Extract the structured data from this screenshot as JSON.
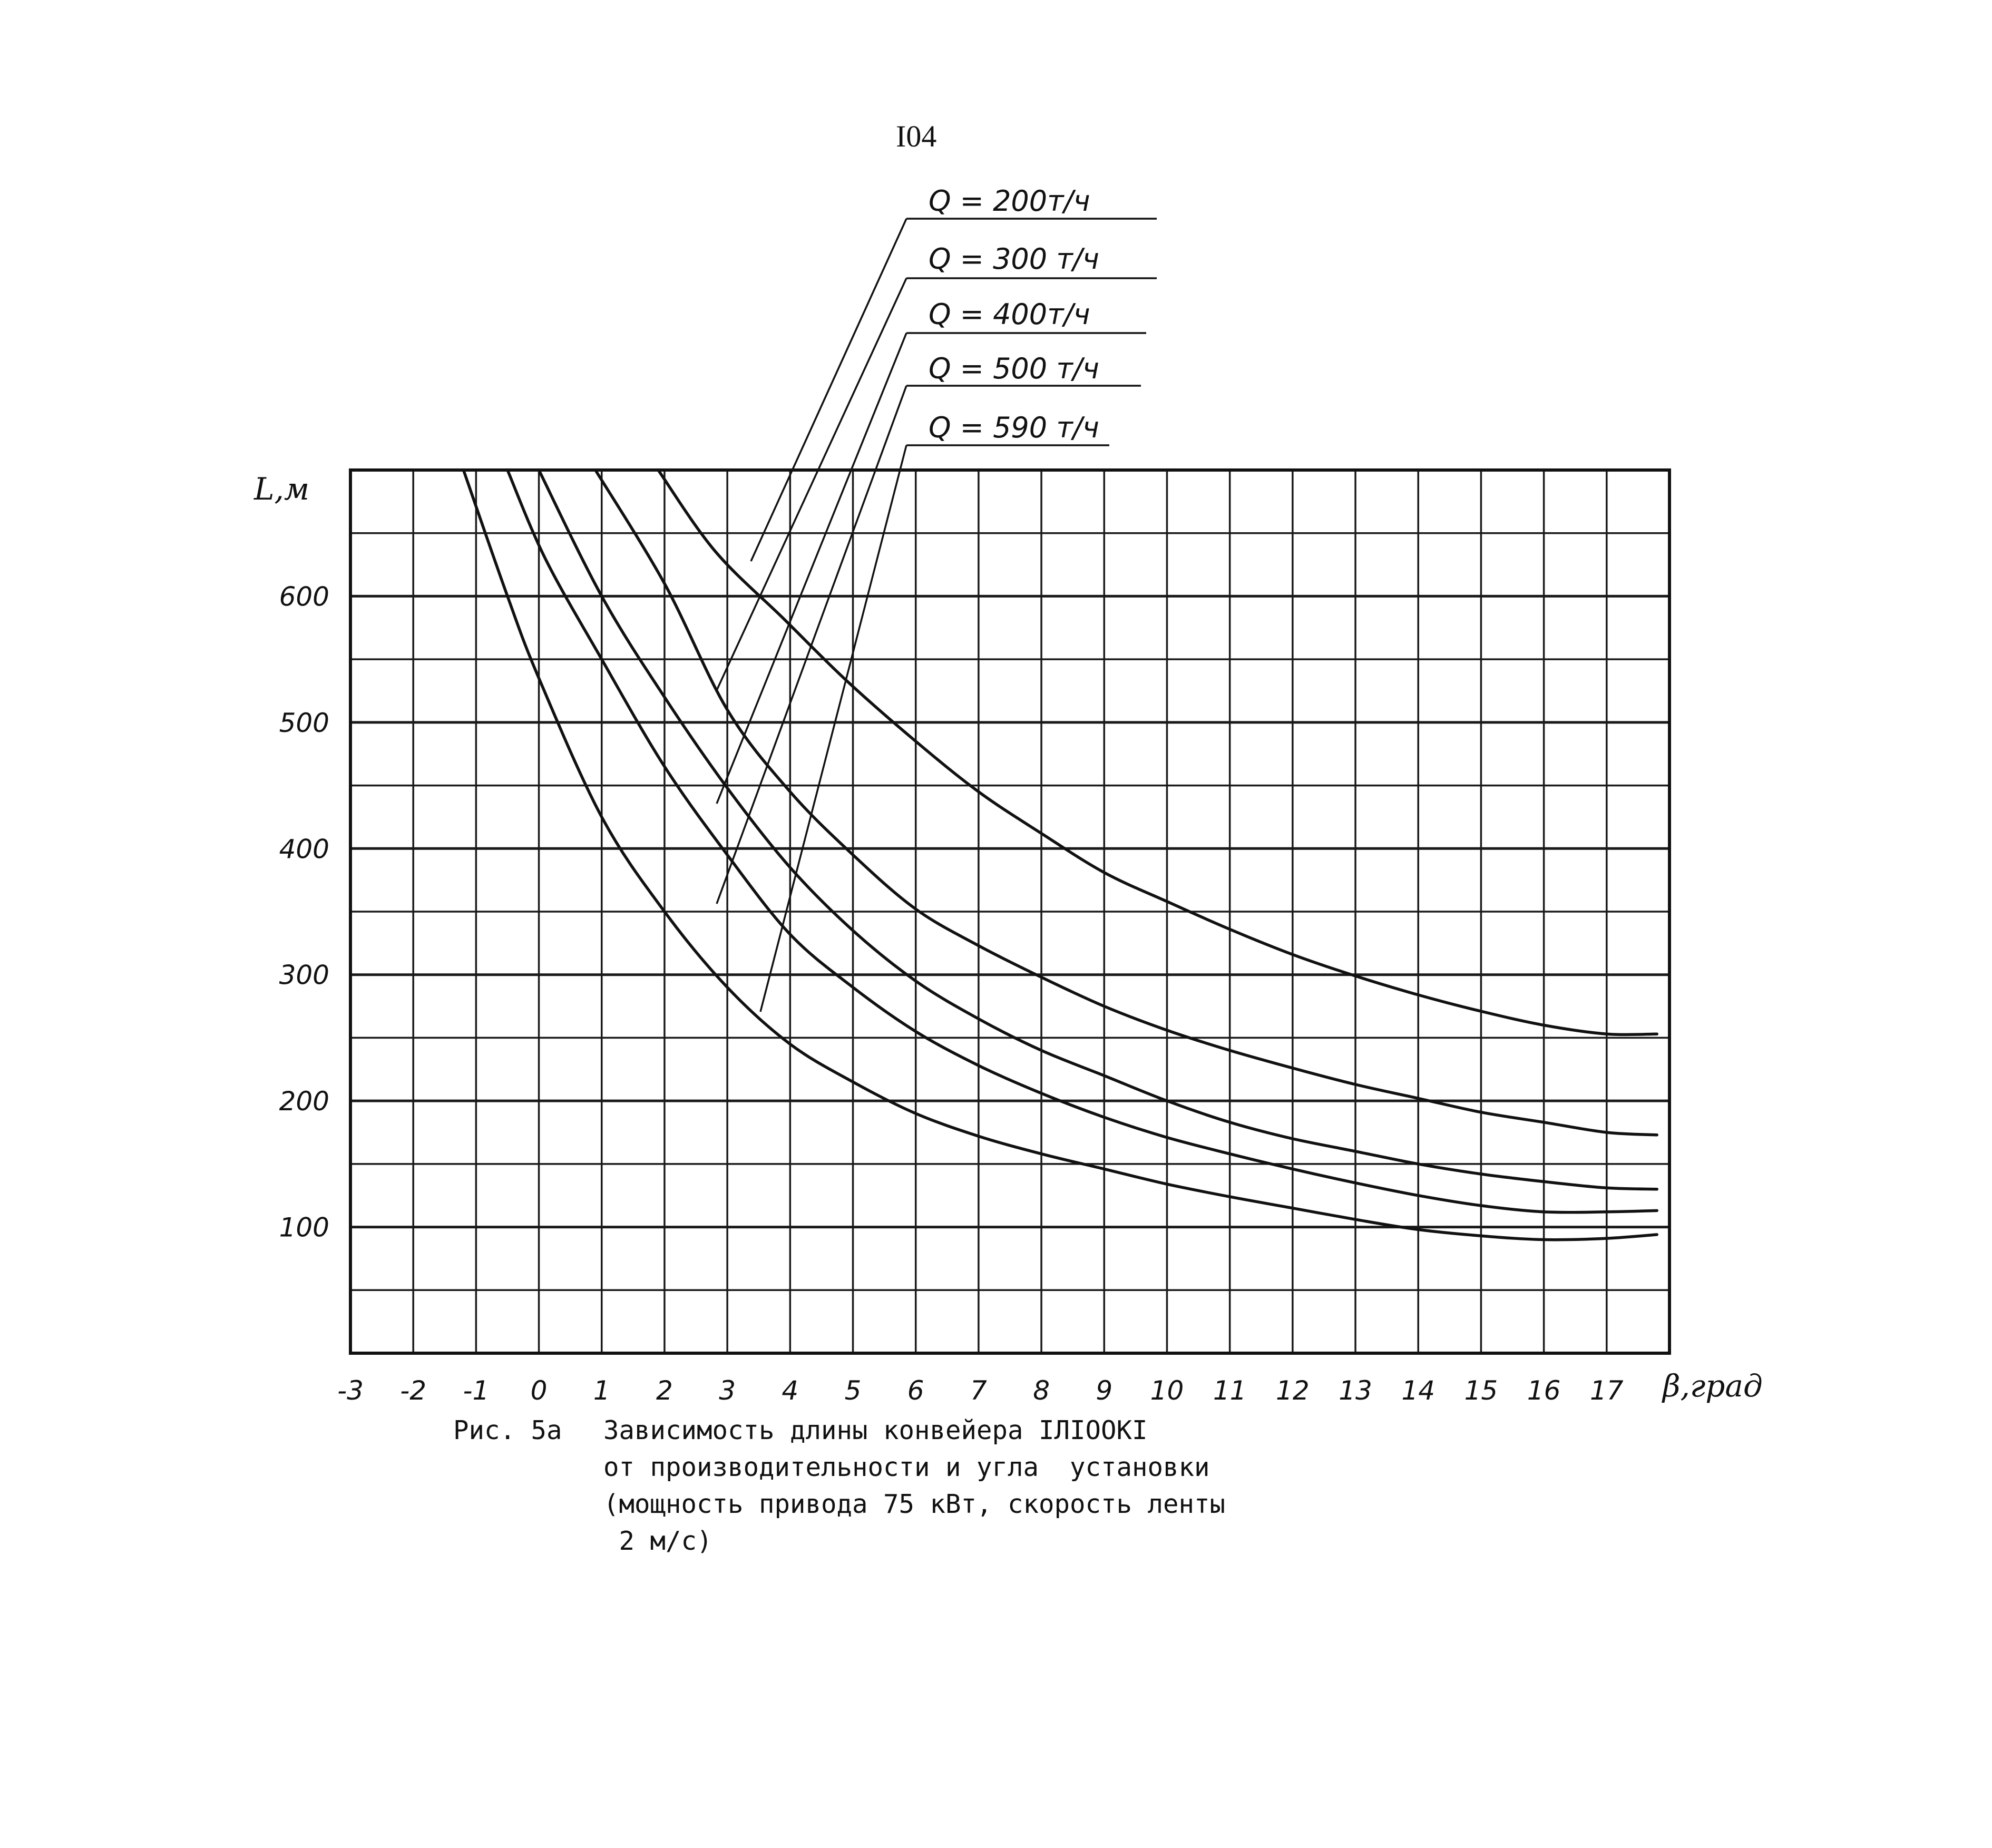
{
  "page_number": "I04",
  "caption": {
    "label": "Рис. 5а",
    "lines": [
      "Зависимость длины конвейера IЛIOOКI",
      "от производительности и угла  установки",
      "(мощность привода 75 кВт, скорость ленты",
      " 2 м/с)"
    ]
  },
  "chart_data": {
    "type": "line",
    "title": "",
    "xlabel": "β,град",
    "ylabel": "L,м",
    "xlim": [
      -3,
      18
    ],
    "ylim": [
      0,
      700
    ],
    "grid": true,
    "legend_placement": "top, above plot with leader lines",
    "x_ticks": [
      -3,
      -2,
      -1,
      0,
      1,
      2,
      3,
      4,
      5,
      6,
      7,
      8,
      9,
      10,
      11,
      12,
      13,
      14,
      15,
      16,
      17
    ],
    "x_tick_labels": [
      "-3",
      "-2",
      "-1",
      "0",
      "1",
      "2",
      "3",
      "4",
      "5",
      "6",
      "7",
      "8",
      "9",
      "10",
      "11",
      "12",
      "13",
      "14",
      "15",
      "16",
      "17"
    ],
    "y_ticks": [
      100,
      200,
      300,
      400,
      500,
      600
    ],
    "y_tick_labels": [
      "100",
      "200",
      "300",
      "400",
      "500",
      "600"
    ],
    "series": [
      {
        "name": "Q = 200т/ч",
        "x": [
          1.9,
          2.8,
          3.9,
          4.9,
          6,
          7,
          8,
          9,
          10,
          11,
          12,
          13,
          14,
          15,
          16,
          17,
          17.8
        ],
        "y": [
          700,
          636,
          582,
          533,
          485,
          445,
          412,
          381,
          358,
          336,
          316,
          299,
          284,
          271,
          260,
          253,
          253
        ]
      },
      {
        "name": "Q = 300 т/ч",
        "x": [
          0.9,
          2,
          3,
          4,
          5,
          6,
          7,
          8,
          9,
          10,
          11,
          12,
          13,
          14,
          15,
          16,
          17,
          17.8
        ],
        "y": [
          700,
          610,
          510,
          445,
          395,
          352,
          323,
          298,
          275,
          256,
          240,
          226,
          213,
          202,
          191,
          183,
          175,
          173
        ]
      },
      {
        "name": "Q = 400т/ч",
        "x": [
          0,
          1,
          2,
          3,
          4,
          5,
          6,
          7,
          8,
          9,
          10,
          11,
          12,
          13,
          14,
          15,
          16,
          17,
          17.8
        ],
        "y": [
          700,
          600,
          520,
          448,
          385,
          335,
          295,
          265,
          240,
          220,
          200,
          183,
          170,
          160,
          150,
          142,
          136,
          131,
          130
        ]
      },
      {
        "name": "Q = 500 т/ч",
        "x": [
          -0.5,
          0.1,
          1,
          2,
          3,
          4,
          5,
          6,
          7,
          8,
          9,
          10,
          11,
          12,
          13,
          14,
          15,
          16,
          17,
          17.8
        ],
        "y": [
          700,
          630,
          550,
          465,
          395,
          332,
          290,
          255,
          228,
          206,
          187,
          171,
          158,
          146,
          135,
          125,
          117,
          112,
          112,
          113
        ]
      },
      {
        "name": "Q = 590 т/ч",
        "x": [
          -1.2,
          -0.5,
          0,
          1,
          2,
          3,
          4,
          5,
          6,
          7,
          8,
          9,
          10,
          11,
          12,
          13,
          14,
          15,
          16,
          17,
          17.8
        ],
        "y": [
          700,
          600,
          535,
          425,
          350,
          290,
          245,
          215,
          190,
          172,
          158,
          146,
          134,
          124,
          115,
          106,
          98,
          93,
          90,
          91,
          94
        ]
      }
    ]
  }
}
